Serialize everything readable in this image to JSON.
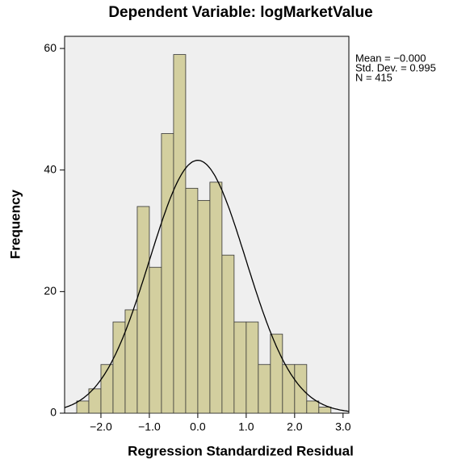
{
  "chart_data": {
    "type": "histogram",
    "title": "Dependent Variable: logMarketValue",
    "xlabel": "Regression Standardized Residual",
    "ylabel": "Frequency",
    "bins": [
      -2.5,
      -2.25,
      -2.0,
      -1.75,
      -1.5,
      -1.25,
      -1.0,
      -0.75,
      -0.5,
      -0.25,
      0.0,
      0.25,
      0.5,
      0.75,
      1.0,
      1.25,
      1.5,
      1.75,
      2.0,
      2.25,
      2.5,
      2.75
    ],
    "values": [
      2,
      4,
      8,
      15,
      17,
      34,
      24,
      46,
      59,
      37,
      35,
      38,
      26,
      15,
      15,
      8,
      13,
      8,
      8,
      2,
      1
    ],
    "color": "#d3cf9f",
    "xlim": [
      -2.75,
      3.12
    ],
    "xticks": [
      {
        "value": -2,
        "label": "−2.0"
      },
      {
        "value": -1,
        "label": "−1.0"
      },
      {
        "value": 0,
        "label": "0.0"
      },
      {
        "value": 1,
        "label": "1.0"
      },
      {
        "value": 2,
        "label": "2.0"
      },
      {
        "value": 3,
        "label": "3.0"
      }
    ],
    "ylim": [
      0,
      62
    ],
    "yticks": [
      0,
      20,
      40,
      60
    ],
    "stats": [
      {
        "value": 0,
        "label": "Mean = −0.000"
      },
      {
        "value": 0.995,
        "label": "Std. Dev. = 0.995"
      },
      {
        "value": 415,
        "label": "N = 415"
      }
    ]
  }
}
